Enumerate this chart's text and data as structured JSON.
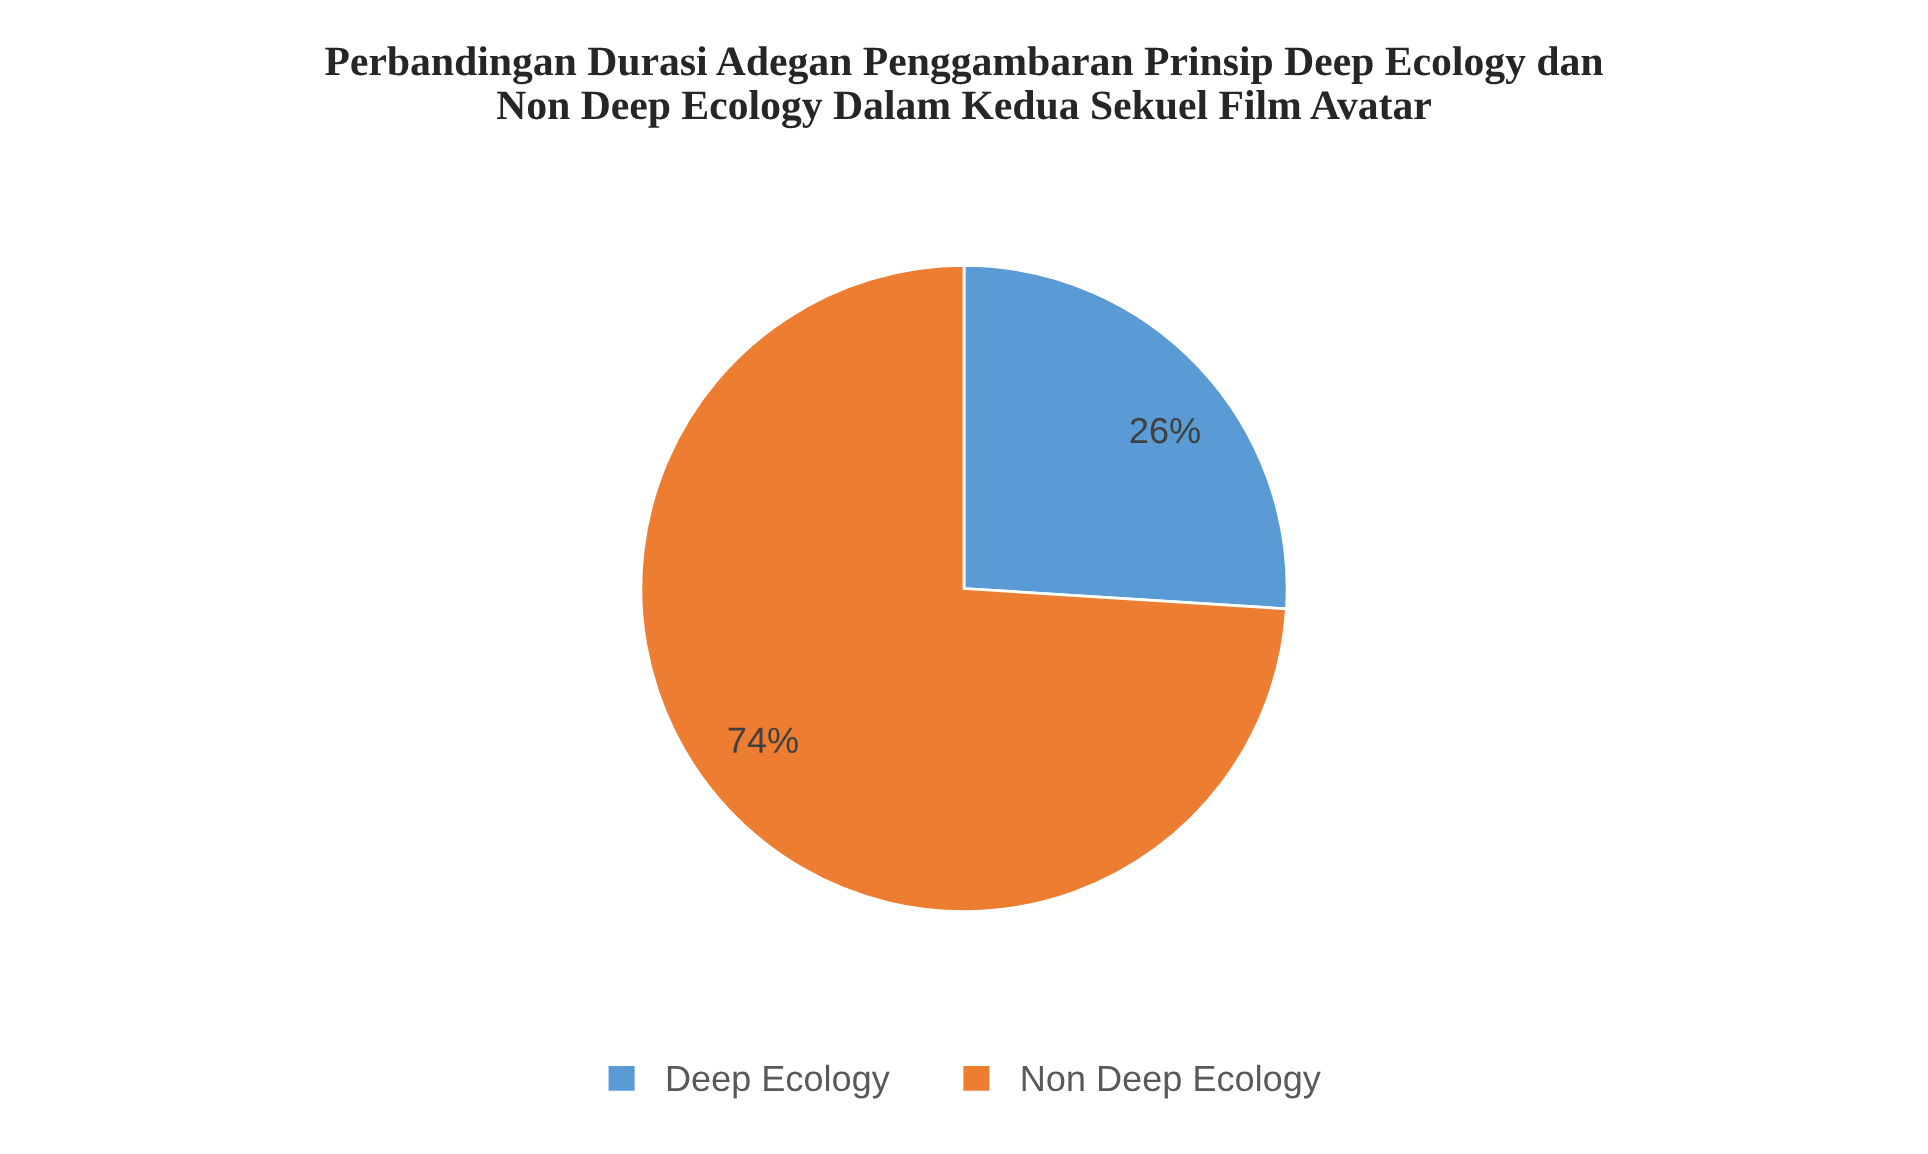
{
  "chart_data": {
    "type": "pie",
    "title": "Perbandingan Durasi Adegan Penggambaran Prinsip Deep Ecology dan\nNon Deep Ecology Dalam Kedua Sekuel Film Avatar",
    "categories": [
      "Deep Ecology",
      "Non Deep Ecology"
    ],
    "values": [
      26,
      74
    ],
    "colors": [
      "#5b9bd5",
      "#ed7d31"
    ],
    "value_labels": [
      "26%",
      "74%"
    ],
    "legend": "bottom"
  }
}
